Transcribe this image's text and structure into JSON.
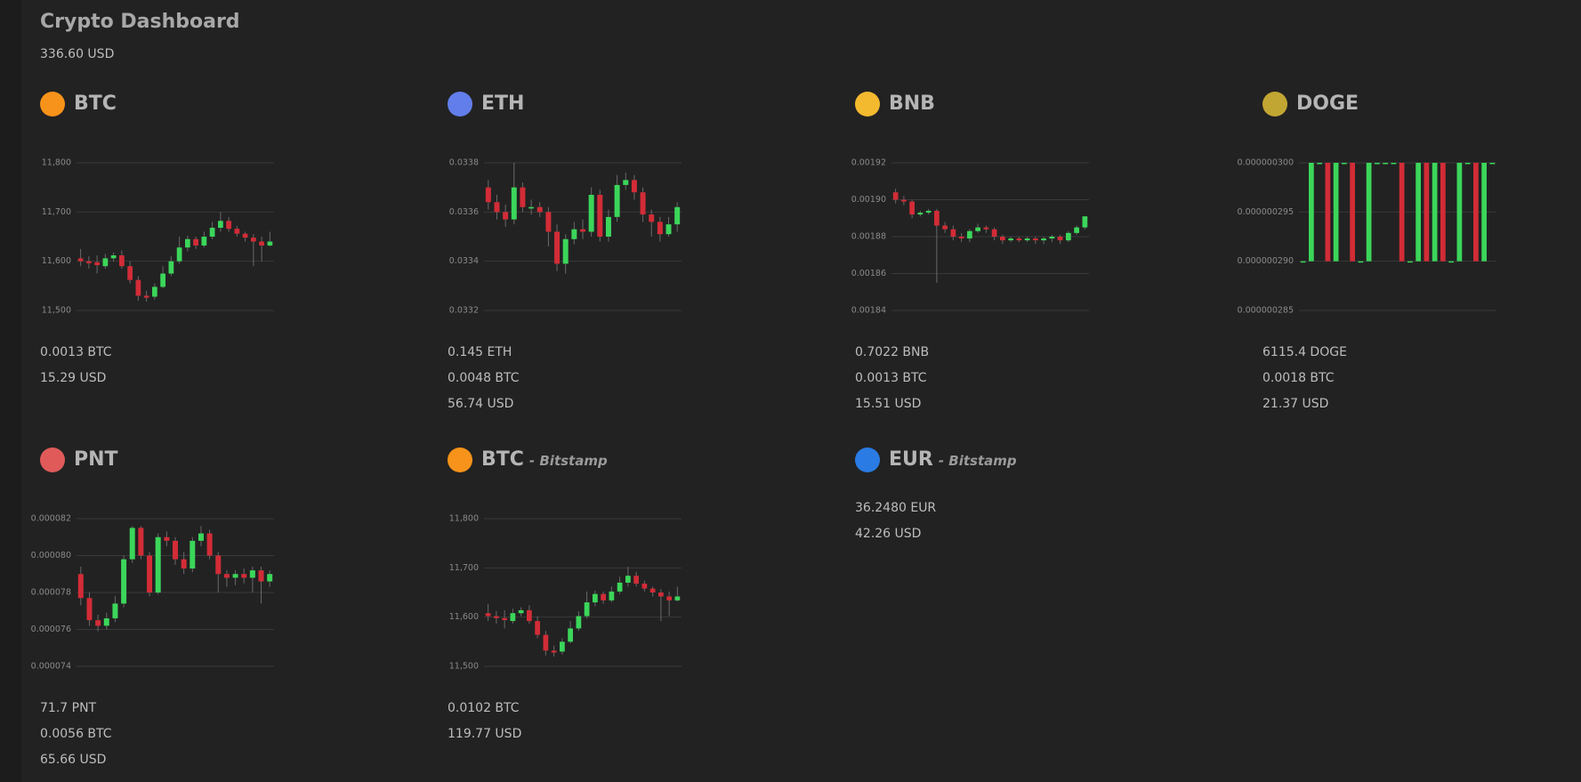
{
  "header": {
    "title": "Crypto Dashboard",
    "total": "336.60 USD"
  },
  "candle_colors": {
    "up": "#3bd65a",
    "down": "#d22c37"
  },
  "cards": [
    {
      "name": "BTC",
      "icon_color": "#f7931a",
      "chart": {
        "type": "candlestick",
        "ylim": [
          11500,
          11800
        ],
        "yticks": [
          {
            "value": 11800,
            "label": "11,800"
          },
          {
            "value": 11700,
            "label": "11,700"
          },
          {
            "value": 11600,
            "label": "11,600"
          },
          {
            "value": 11500,
            "label": "11,500"
          }
        ],
        "open": [
          11606,
          11600,
          11598,
          11590,
          11606,
          11612,
          11590,
          11562,
          11530,
          11528,
          11548,
          11575,
          11600,
          11628,
          11645,
          11632,
          11650,
          11668,
          11682,
          11666,
          11656,
          11648,
          11640,
          11632
        ],
        "high": [
          11625,
          11610,
          11612,
          11615,
          11618,
          11622,
          11600,
          11570,
          11540,
          11555,
          11590,
          11610,
          11650,
          11652,
          11650,
          11660,
          11680,
          11700,
          11690,
          11672,
          11660,
          11655,
          11650,
          11660
        ],
        "low": [
          11590,
          11585,
          11575,
          11585,
          11600,
          11585,
          11555,
          11520,
          11518,
          11522,
          11545,
          11570,
          11595,
          11620,
          11625,
          11628,
          11645,
          11660,
          11660,
          11650,
          11640,
          11590,
          11600,
          11630
        ],
        "close": [
          11600,
          11596,
          11592,
          11606,
          11612,
          11590,
          11562,
          11530,
          11526,
          11548,
          11575,
          11600,
          11628,
          11645,
          11632,
          11650,
          11668,
          11682,
          11666,
          11656,
          11648,
          11640,
          11632,
          11640
        ]
      },
      "lines": [
        "0.0013 BTC",
        "15.29 USD"
      ]
    },
    {
      "name": "ETH",
      "icon_color": "#627eea",
      "chart": {
        "type": "candlestick",
        "ylim": [
          0.0332,
          0.0338
        ],
        "yticks": [
          0.0338,
          0.0336,
          0.0334,
          0.0332
        ],
        "open": [
          0.0337,
          0.03364,
          0.0336,
          0.03357,
          0.0337,
          0.03362,
          0.03362,
          0.0336,
          0.03352,
          0.03339,
          0.03349,
          0.03353,
          0.03352,
          0.03367,
          0.0335,
          0.03358,
          0.03371,
          0.03373,
          0.03368,
          0.03359,
          0.03356,
          0.03351,
          0.03355
        ],
        "high": [
          0.03373,
          0.03367,
          0.03363,
          0.0338,
          0.03372,
          0.03365,
          0.03364,
          0.03362,
          0.03355,
          0.03351,
          0.03356,
          0.03357,
          0.0337,
          0.03369,
          0.03361,
          0.03375,
          0.03376,
          0.03375,
          0.0337,
          0.03361,
          0.03358,
          0.03358,
          0.03364
        ],
        "low": [
          0.03361,
          0.03357,
          0.03354,
          0.03355,
          0.0336,
          0.03359,
          0.03358,
          0.03346,
          0.03336,
          0.03335,
          0.03347,
          0.03349,
          0.0335,
          0.03348,
          0.03348,
          0.03356,
          0.03369,
          0.03365,
          0.03356,
          0.0335,
          0.03348,
          0.0335,
          0.03352
        ],
        "close": [
          0.03364,
          0.0336,
          0.03357,
          0.0337,
          0.03362,
          0.03362,
          0.0336,
          0.03352,
          0.03339,
          0.03349,
          0.03353,
          0.03352,
          0.03367,
          0.0335,
          0.03358,
          0.03371,
          0.03373,
          0.03368,
          0.03359,
          0.03356,
          0.03351,
          0.03355,
          0.03362
        ]
      },
      "lines": [
        "0.145 ETH",
        "0.0048 BTC",
        "56.74 USD"
      ]
    },
    {
      "name": "BNB",
      "icon_color": "#f3ba2f",
      "chart": {
        "type": "candlestick",
        "ylim": [
          0.00184,
          0.00192
        ],
        "yticks": [
          0.00192,
          {
            "value": 0.0019,
            "label": "0.00190"
          },
          0.00188,
          0.00186,
          0.00184
        ],
        "open": [
          0.001904,
          0.0019,
          0.001899,
          0.001892,
          0.001893,
          0.001894,
          0.001886,
          0.001884,
          0.00188,
          0.001879,
          0.001883,
          0.001885,
          0.001884,
          0.00188,
          0.001878,
          0.001879,
          0.001878,
          0.001879,
          0.001878,
          0.001879,
          0.00188,
          0.001878,
          0.001882,
          0.001885
        ],
        "high": [
          0.001906,
          0.001902,
          0.0019,
          0.001894,
          0.001895,
          0.001895,
          0.001888,
          0.001886,
          0.001882,
          0.001884,
          0.001887,
          0.001886,
          0.001885,
          0.001881,
          0.00188,
          0.00188,
          0.00188,
          0.00188,
          0.00188,
          0.001881,
          0.001881,
          0.001883,
          0.001886,
          0.001891
        ],
        "low": [
          0.001898,
          0.001897,
          0.00189,
          0.001891,
          0.001892,
          0.001855,
          0.001882,
          0.001878,
          0.001877,
          0.001877,
          0.001882,
          0.001882,
          0.001878,
          0.001876,
          0.001877,
          0.001877,
          0.001877,
          0.001876,
          0.001876,
          0.001877,
          0.001876,
          0.001877,
          0.001881,
          0.001884
        ],
        "close": [
          0.0019,
          0.001899,
          0.001892,
          0.001893,
          0.001894,
          0.001886,
          0.001884,
          0.00188,
          0.001879,
          0.001883,
          0.001885,
          0.001884,
          0.00188,
          0.001878,
          0.001879,
          0.001878,
          0.001879,
          0.001878,
          0.001879,
          0.00188,
          0.001878,
          0.001882,
          0.001885,
          0.001891
        ]
      },
      "lines": [
        "0.7022 BNB",
        "0.0013 BTC",
        "15.51 USD"
      ]
    },
    {
      "name": "DOGE",
      "icon_color": "#c2a633",
      "chart": {
        "type": "candlestick",
        "ylim": [
          2.85e-07,
          3e-07
        ],
        "yticks": [
          {
            "value": 3e-07,
            "label": "0.000000300"
          },
          {
            "value": 2.95e-07,
            "label": "0.000000295"
          },
          {
            "value": 2.9e-07,
            "label": "0.000000290"
          },
          {
            "value": 2.85e-07,
            "label": "0.000000285"
          }
        ],
        "open": [
          2.9e-07,
          2.9e-07,
          3e-07,
          3e-07,
          2.9e-07,
          3e-07,
          3e-07,
          2.9e-07,
          2.9e-07,
          3e-07,
          3e-07,
          3e-07,
          3e-07,
          2.9e-07,
          2.9e-07,
          3e-07,
          2.9e-07,
          3e-07,
          2.9e-07,
          2.9e-07,
          3e-07,
          3e-07,
          2.9e-07,
          3e-07
        ],
        "high": [
          2.9e-07,
          3e-07,
          3e-07,
          3e-07,
          3e-07,
          3e-07,
          3e-07,
          2.9e-07,
          3e-07,
          3e-07,
          3e-07,
          3e-07,
          3e-07,
          2.9e-07,
          3e-07,
          3e-07,
          3e-07,
          3e-07,
          2.9e-07,
          3e-07,
          3e-07,
          3e-07,
          3e-07,
          3e-07
        ],
        "low": [
          2.9e-07,
          2.9e-07,
          3e-07,
          2.9e-07,
          2.9e-07,
          3e-07,
          2.9e-07,
          2.9e-07,
          2.9e-07,
          3e-07,
          3e-07,
          3e-07,
          2.9e-07,
          2.9e-07,
          2.9e-07,
          2.9e-07,
          2.9e-07,
          2.9e-07,
          2.9e-07,
          2.9e-07,
          3e-07,
          2.9e-07,
          2.9e-07,
          3e-07
        ],
        "close": [
          2.9e-07,
          3e-07,
          3e-07,
          2.9e-07,
          3e-07,
          3e-07,
          2.9e-07,
          2.9e-07,
          3e-07,
          3e-07,
          3e-07,
          3e-07,
          2.9e-07,
          2.9e-07,
          3e-07,
          2.9e-07,
          3e-07,
          2.9e-07,
          2.9e-07,
          3e-07,
          3e-07,
          2.9e-07,
          3e-07,
          3e-07
        ]
      },
      "lines": [
        "6115.4 DOGE",
        "0.0018 BTC",
        "21.37 USD"
      ]
    },
    {
      "name": "PNT",
      "icon_color": "#e05a5a",
      "chart": {
        "type": "candlestick",
        "ylim": [
          7.4e-05,
          8.2e-05
        ],
        "yticks": [
          8.2e-05,
          {
            "value": 8e-05,
            "label": "0.000080"
          },
          7.8e-05,
          7.6e-05,
          7.4e-05
        ],
        "open": [
          7.9e-05,
          7.77e-05,
          7.65e-05,
          7.62e-05,
          7.66e-05,
          7.74e-05,
          7.98e-05,
          8.15e-05,
          8e-05,
          7.8e-05,
          8.1e-05,
          8.08e-05,
          7.98e-05,
          7.93e-05,
          8.08e-05,
          8.12e-05,
          8e-05,
          7.9e-05,
          7.88e-05,
          7.9e-05,
          7.88e-05,
          7.92e-05,
          7.86e-05
        ],
        "high": [
          7.94e-05,
          7.8e-05,
          7.68e-05,
          7.69e-05,
          7.78e-05,
          8e-05,
          8.16e-05,
          8.16e-05,
          8.02e-05,
          8.12e-05,
          8.13e-05,
          8.1e-05,
          8.02e-05,
          8.1e-05,
          8.16e-05,
          8.14e-05,
          8.02e-05,
          7.92e-05,
          7.92e-05,
          7.93e-05,
          7.94e-05,
          7.94e-05,
          7.92e-05
        ],
        "low": [
          7.73e-05,
          7.62e-05,
          7.59e-05,
          7.6e-05,
          7.64e-05,
          7.72e-05,
          7.96e-05,
          7.98e-05,
          7.78e-05,
          7.79e-05,
          8.05e-05,
          7.95e-05,
          7.9e-05,
          7.91e-05,
          8.05e-05,
          7.98e-05,
          7.8e-05,
          7.83e-05,
          7.84e-05,
          7.85e-05,
          7.8e-05,
          7.74e-05,
          7.83e-05
        ],
        "close": [
          7.77e-05,
          7.65e-05,
          7.62e-05,
          7.66e-05,
          7.74e-05,
          7.98e-05,
          8.15e-05,
          8e-05,
          7.8e-05,
          8.1e-05,
          8.08e-05,
          7.98e-05,
          7.93e-05,
          8.08e-05,
          8.12e-05,
          8e-05,
          7.9e-05,
          7.88e-05,
          7.9e-05,
          7.88e-05,
          7.92e-05,
          7.86e-05,
          7.9e-05
        ]
      },
      "lines": [
        "71.7 PNT",
        "0.0056 BTC",
        "65.66 USD"
      ]
    },
    {
      "name": "BTC",
      "exchange": "- Bitstamp",
      "icon_color": "#f7931a",
      "chart": {
        "type": "candlestick",
        "ylim": [
          11500,
          11800
        ],
        "yticks": [
          {
            "value": 11800,
            "label": "11,800"
          },
          {
            "value": 11700,
            "label": "11,700"
          },
          {
            "value": 11600,
            "label": "11,600"
          },
          {
            "value": 11500,
            "label": "11,500"
          }
        ],
        "open": [
          11608,
          11602,
          11598,
          11592,
          11608,
          11614,
          11592,
          11564,
          11532,
          11530,
          11550,
          11577,
          11602,
          11630,
          11647,
          11634,
          11652,
          11670,
          11684,
          11668,
          11658,
          11650,
          11642,
          11634
        ],
        "high": [
          11627,
          11612,
          11614,
          11617,
          11620,
          11624,
          11602,
          11572,
          11542,
          11557,
          11592,
          11612,
          11652,
          11654,
          11652,
          11662,
          11682,
          11702,
          11692,
          11674,
          11662,
          11657,
          11652,
          11662
        ],
        "low": [
          11592,
          11587,
          11577,
          11587,
          11602,
          11587,
          11557,
          11522,
          11520,
          11524,
          11547,
          11572,
          11597,
          11622,
          11627,
          11630,
          11647,
          11662,
          11662,
          11652,
          11642,
          11592,
          11602,
          11632
        ],
        "close": [
          11602,
          11598,
          11594,
          11608,
          11614,
          11592,
          11564,
          11532,
          11528,
          11550,
          11577,
          11602,
          11630,
          11647,
          11634,
          11652,
          11670,
          11684,
          11668,
          11658,
          11650,
          11642,
          11634,
          11642
        ]
      },
      "lines": [
        "0.0102 BTC",
        "119.77 USD"
      ]
    },
    {
      "name": "EUR",
      "exchange": "- Bitstamp",
      "icon_color": "#2a7be4",
      "lines": [
        "36.2480 EUR",
        "42.26 USD"
      ]
    }
  ]
}
